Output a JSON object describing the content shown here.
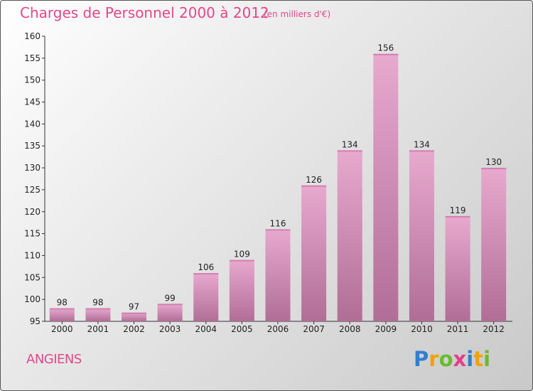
{
  "header": {
    "title": "Charges de Personnel 2000 à 2012",
    "subtitle": "(en milliers d'€)"
  },
  "footer": {
    "town": "ANGIENS",
    "logo": "Proxiti"
  },
  "colors": {
    "title": "#e2488a",
    "bar_light": "#e8a9cf",
    "bar_dark": "#b06e96"
  },
  "chart_data": {
    "type": "bar",
    "title": "Charges de Personnel 2000 à 2012",
    "subtitle": "(en milliers d'€)",
    "xlabel": "",
    "ylabel": "",
    "categories": [
      "2000",
      "2001",
      "2002",
      "2003",
      "2004",
      "2005",
      "2006",
      "2007",
      "2008",
      "2009",
      "2010",
      "2011",
      "2012"
    ],
    "values": [
      98,
      98,
      97,
      99,
      106,
      109,
      116,
      126,
      134,
      156,
      134,
      119,
      130
    ],
    "ylim": [
      95,
      160
    ],
    "yticks": [
      95,
      100,
      105,
      110,
      115,
      120,
      125,
      130,
      135,
      140,
      145,
      150,
      155,
      160
    ],
    "grid": false
  }
}
